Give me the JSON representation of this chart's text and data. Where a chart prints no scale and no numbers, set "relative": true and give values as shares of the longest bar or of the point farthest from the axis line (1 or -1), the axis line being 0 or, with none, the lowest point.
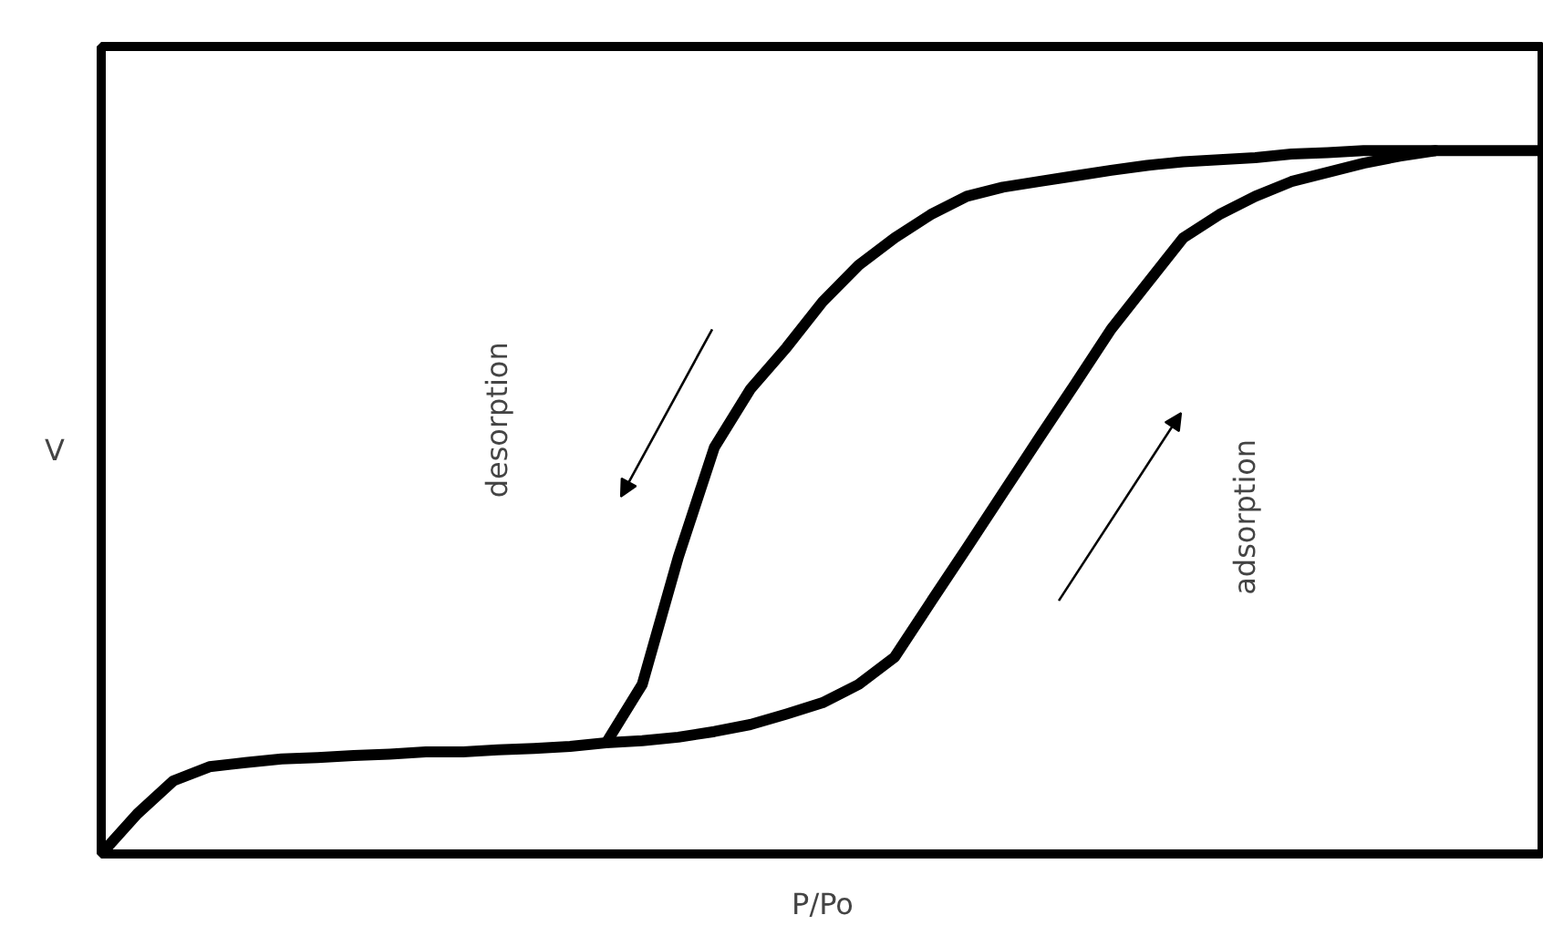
{
  "chart_data": {
    "type": "line",
    "relative": true,
    "xlabel": "P/Po",
    "ylabel": "V",
    "categories": [
      null,
      null,
      null,
      null,
      null,
      null,
      null,
      null,
      null,
      null,
      null,
      null,
      null,
      null,
      null,
      null,
      null,
      null,
      null,
      null,
      null,
      null,
      null,
      null,
      null,
      null,
      null,
      null,
      null,
      null,
      null,
      null,
      null,
      null,
      null,
      null,
      null,
      null,
      null,
      null,
      null
    ],
    "series": [
      {
        "color": "#000000",
        "values": [
          0,
          0.057,
          0.104,
          0.124,
          0.13,
          0.135,
          0.137,
          0.14,
          0.142,
          0.145,
          0.145,
          0.148,
          0.15,
          0.153,
          0.158,
          0.161,
          0.166,
          0.174,
          0.184,
          0.199,
          0.215,
          0.241,
          0.28,
          0.358,
          0.435,
          0.513,
          0.591,
          0.668,
          0.746,
          0.811,
          0.876,
          0.909,
          0.935,
          0.956,
          0.969,
          0.982,
          0.992,
          1,
          1,
          1,
          1
        ]
      },
      {
        "color": "#000000",
        "values": [
          null,
          null,
          null,
          null,
          null,
          null,
          null,
          null,
          null,
          null,
          null,
          null,
          null,
          null,
          0.158,
          0.241,
          0.422,
          0.578,
          0.661,
          0.72,
          0.785,
          0.837,
          0.876,
          0.909,
          0.935,
          0.948,
          0.956,
          0.964,
          0.972,
          0.979,
          0.984,
          0.987,
          0.99,
          0.995,
          0.997,
          1,
          1,
          1,
          null,
          null,
          null
        ]
      }
    ],
    "annotations": [
      "desorption",
      "adsorption"
    ],
    "marker": "none",
    "line_style": "solid"
  }
}
